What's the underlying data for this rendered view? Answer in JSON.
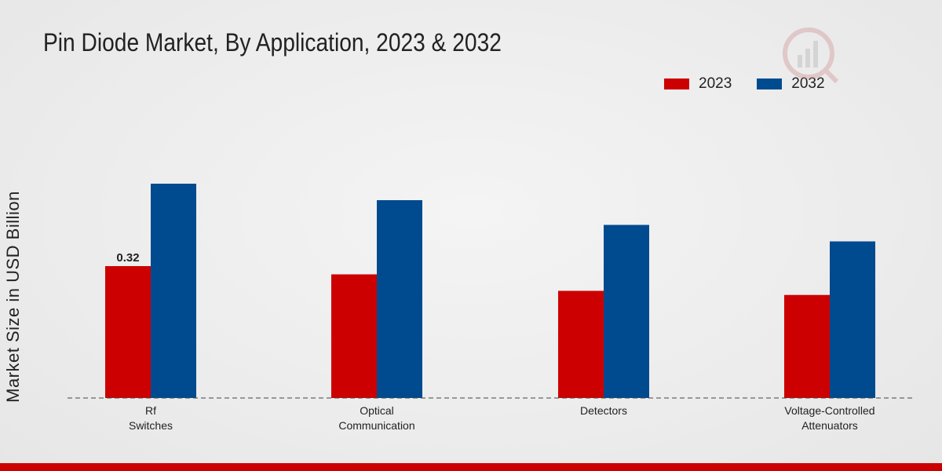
{
  "chart_data": {
    "type": "bar",
    "title": "Pin Diode Market, By Application, 2023 & 2032",
    "xlabel": "",
    "ylabel": "Market Size in USD Billion",
    "categories": [
      [
        "Rf",
        "Switches"
      ],
      [
        "Optical",
        "Communication"
      ],
      [
        "Detectors"
      ],
      [
        "Voltage-Controlled",
        "Attenuators"
      ]
    ],
    "series": [
      {
        "name": "2023",
        "color": "#cc0000",
        "values": [
          0.32,
          0.3,
          0.26,
          0.25
        ]
      },
      {
        "name": "2032",
        "color": "#004a8f",
        "values": [
          0.52,
          0.48,
          0.42,
          0.38
        ]
      }
    ],
    "data_labels": [
      {
        "series": 0,
        "index": 0,
        "text": "0.32"
      }
    ],
    "ylim": [
      0,
      0.8
    ],
    "grid": false,
    "legend": "top-right"
  }
}
